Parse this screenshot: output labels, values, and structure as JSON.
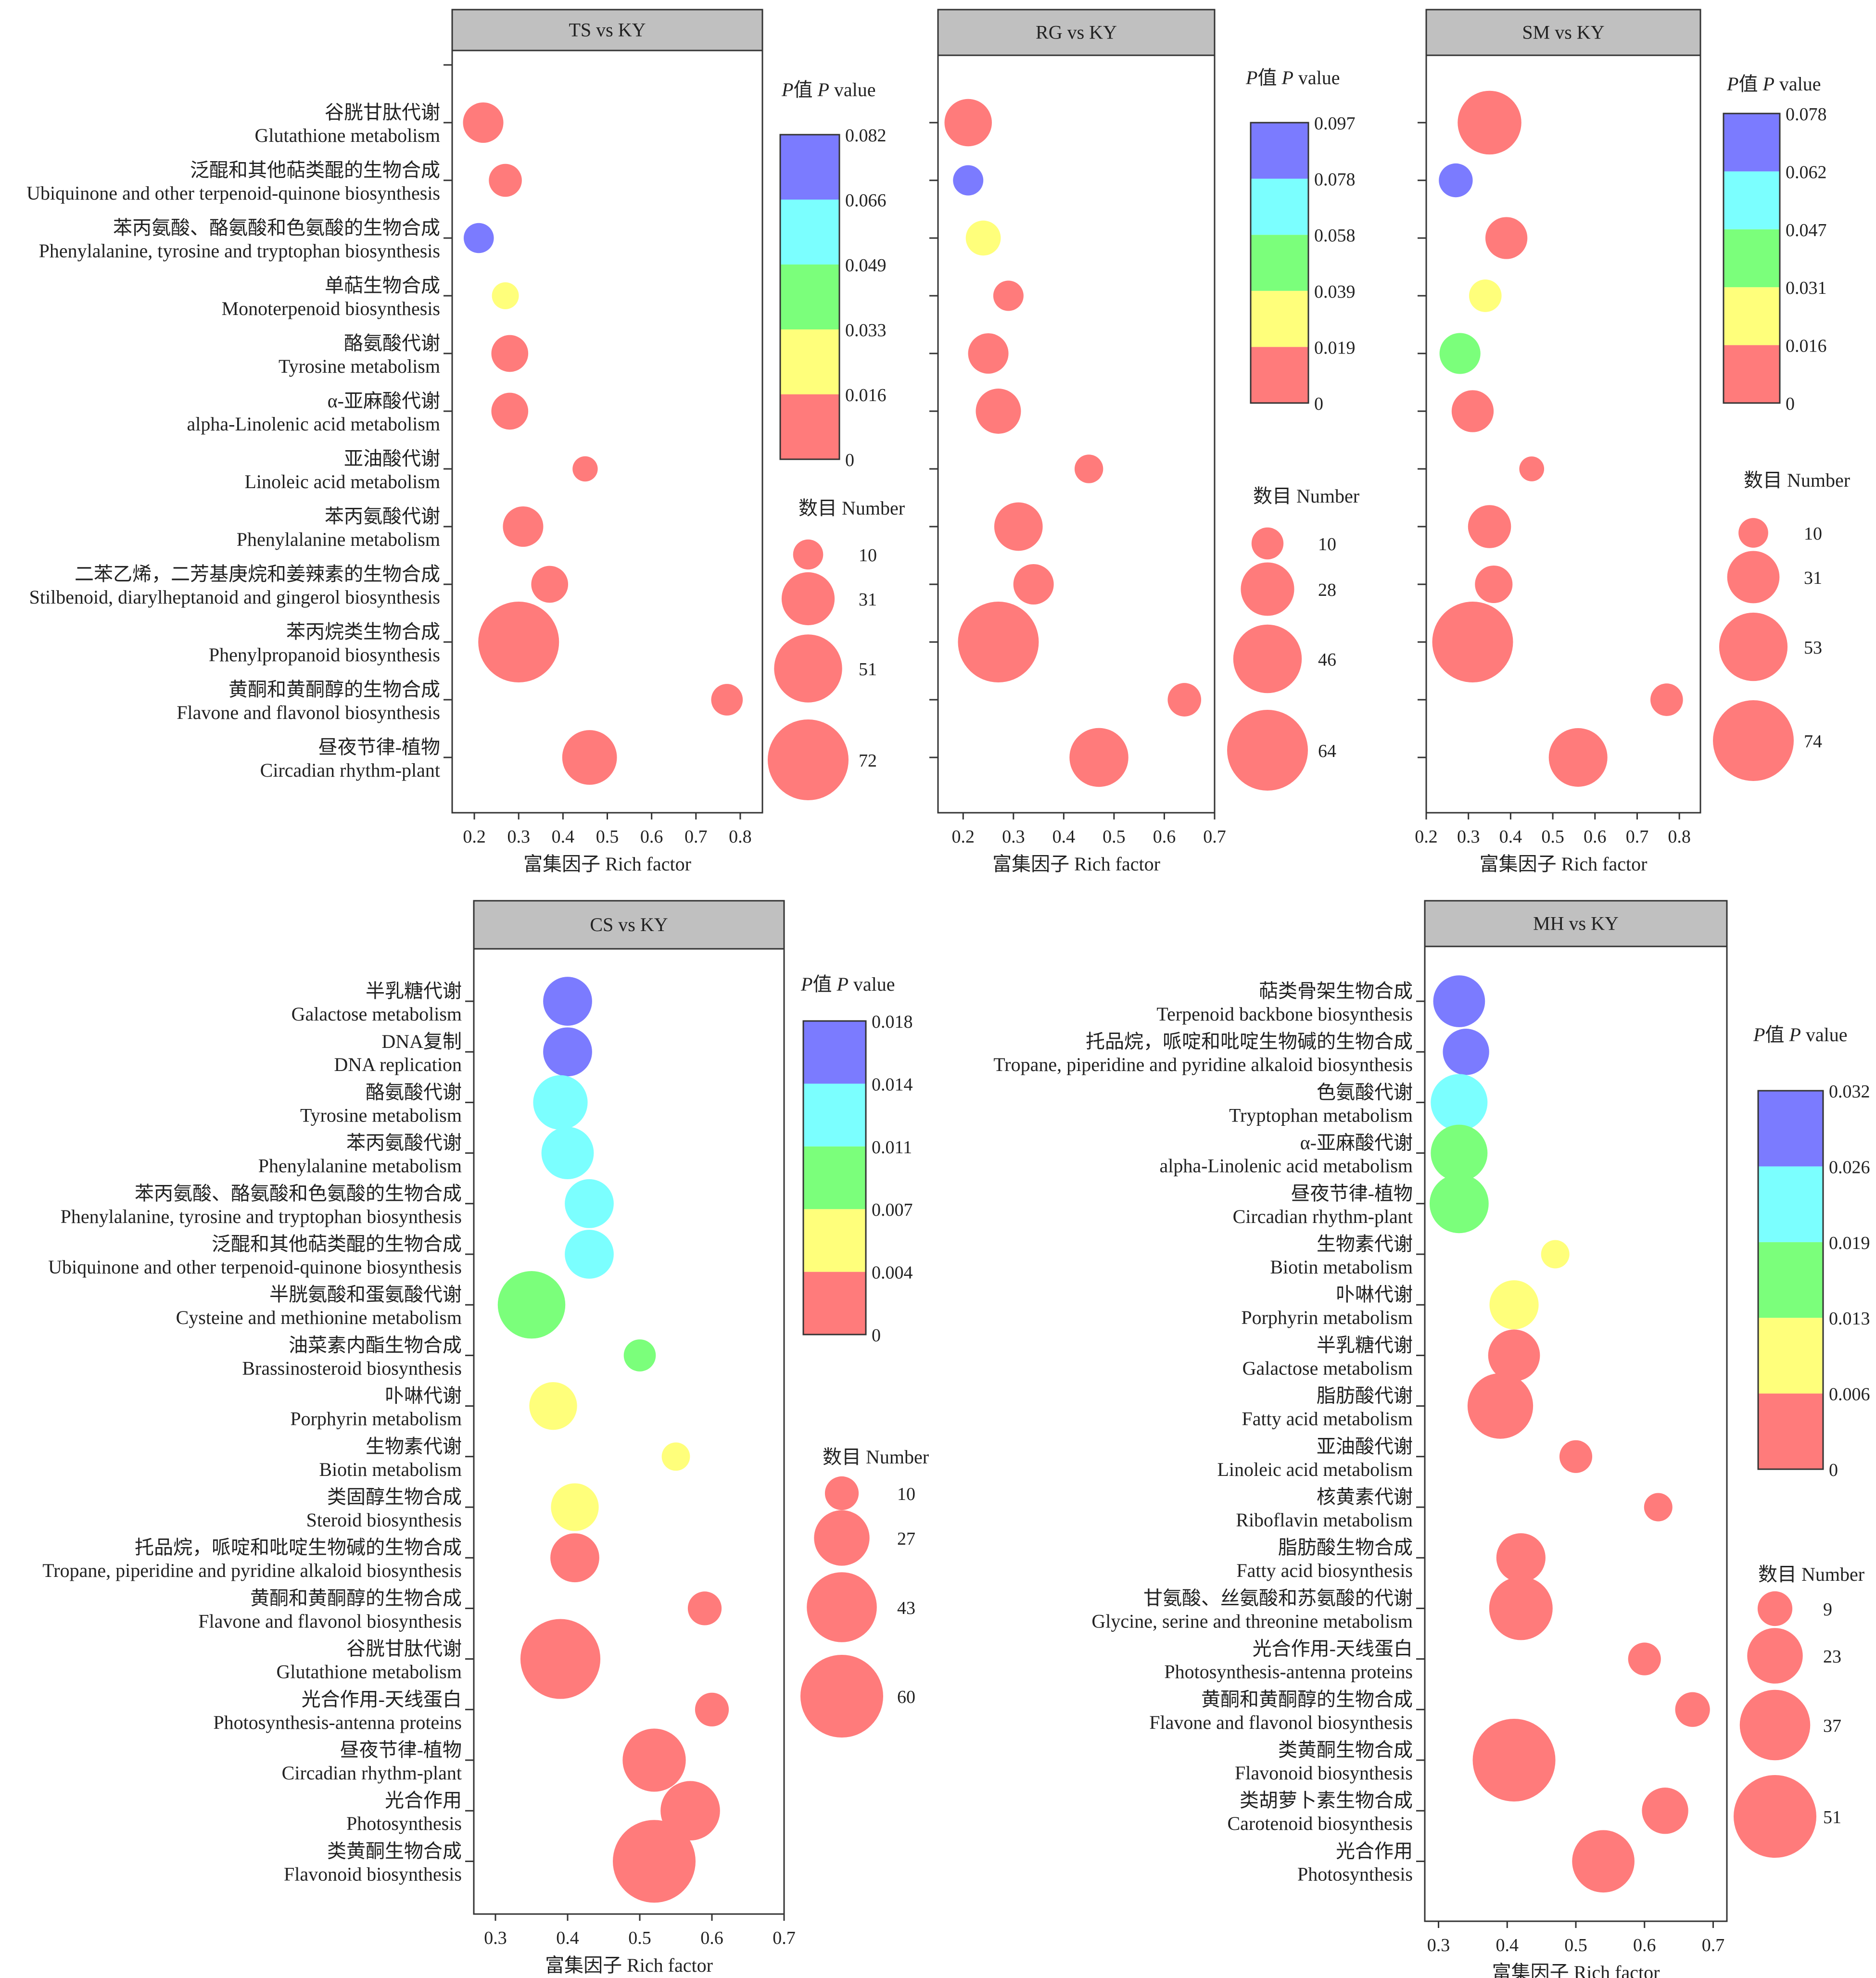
{
  "colors": {
    "scale": [
      "#ff7b7b",
      "#ffff7b",
      "#7bff7b",
      "#7bffff",
      "#7b7bff"
    ],
    "panel_header": "#c0c0c0",
    "axis": "#333333"
  },
  "chart_data": [
    {
      "type": "scatter",
      "title": "TS vs KY",
      "xlabel": "富集因子 Rich factor",
      "xlim": [
        0.15,
        0.85
      ],
      "xticks": [
        "0.2",
        "0.3",
        "0.4",
        "0.5",
        "0.6",
        "0.7",
        "0.8"
      ],
      "pvalue_legend": {
        "title": "P值 P value",
        "ticks": [
          "0",
          "0.016",
          "0.033",
          "0.049",
          "0.066",
          "0.082"
        ]
      },
      "size_legend": {
        "title": "数目 Number",
        "values": [
          10,
          31,
          51,
          72
        ]
      },
      "categories": [
        {
          "cn": "谷胱甘肽代谢",
          "en": "Glutathione metabolism",
          "x": 0.22,
          "n": 18,
          "p": 0.004
        },
        {
          "cn": "泛醌和其他萜类醌的生物合成",
          "en": "Ubiquinone and other terpenoid-quinone biosynthesis",
          "x": 0.27,
          "n": 12,
          "p": 0.006
        },
        {
          "cn": "苯丙氨酸、酪氨酸和色氨酸的生物合成",
          "en": "Phenylalanine, tyrosine and tryptophan biosynthesis",
          "x": 0.21,
          "n": 10,
          "p": 0.08
        },
        {
          "cn": "单萜生物合成",
          "en": "Monoterpenoid biosynthesis",
          "x": 0.27,
          "n": 8,
          "p": 0.025
        },
        {
          "cn": "酪氨酸代谢",
          "en": "Tyrosine metabolism",
          "x": 0.28,
          "n": 15,
          "p": 0.007
        },
        {
          "cn": "α-亚麻酸代谢",
          "en": "alpha-Linolenic acid metabolism",
          "x": 0.28,
          "n": 15,
          "p": 0.007
        },
        {
          "cn": "亚油酸代谢",
          "en": "Linoleic acid metabolism",
          "x": 0.45,
          "n": 7,
          "p": 0.008
        },
        {
          "cn": "苯丙氨酸代谢",
          "en": "Phenylalanine metabolism",
          "x": 0.31,
          "n": 18,
          "p": 0.005
        },
        {
          "cn": "二苯乙烯，二芳基庚烷和姜辣素的生物合成",
          "en": "Stilbenoid, diarylheptanoid and gingerol biosynthesis",
          "x": 0.37,
          "n": 15,
          "p": 0.005
        },
        {
          "cn": "苯丙烷类生物合成",
          "en": "Phenylpropanoid biosynthesis",
          "x": 0.3,
          "n": 72,
          "p": 0.0
        },
        {
          "cn": "黄酮和黄酮醇的生物合成",
          "en": "Flavone and flavonol biosynthesis",
          "x": 0.77,
          "n": 11,
          "p": 0.004
        },
        {
          "cn": "昼夜节律-植物",
          "en": "Circadian rhythm-plant",
          "x": 0.46,
          "n": 33,
          "p": 0.0
        }
      ]
    },
    {
      "type": "scatter",
      "title": "RG vs KY",
      "xlabel": "富集因子 Rich factor",
      "xlim": [
        0.15,
        0.7
      ],
      "xticks": [
        "0.2",
        "0.3",
        "0.4",
        "0.5",
        "0.6",
        "0.7"
      ],
      "pvalue_legend": {
        "title": "P值 P value",
        "ticks": [
          "0",
          "0.019",
          "0.039",
          "0.058",
          "0.078",
          "0.097"
        ]
      },
      "size_legend": {
        "title": "数目 Number",
        "values": [
          10,
          28,
          46,
          64
        ]
      },
      "categories": [
        {
          "cn": "",
          "en": "",
          "x": 0.21,
          "n": 22,
          "p": 0.003
        },
        {
          "cn": "",
          "en": "",
          "x": 0.21,
          "n": 9,
          "p": 0.095
        },
        {
          "cn": "",
          "en": "",
          "x": 0.24,
          "n": 12,
          "p": 0.03
        },
        {
          "cn": "",
          "en": "",
          "x": 0.29,
          "n": 9,
          "p": 0.005
        },
        {
          "cn": "",
          "en": "",
          "x": 0.25,
          "n": 16,
          "p": 0.008
        },
        {
          "cn": "",
          "en": "",
          "x": 0.27,
          "n": 20,
          "p": 0.004
        },
        {
          "cn": "",
          "en": "",
          "x": 0.45,
          "n": 8,
          "p": 0.01
        },
        {
          "cn": "",
          "en": "",
          "x": 0.31,
          "n": 23,
          "p": 0.004
        },
        {
          "cn": "",
          "en": "",
          "x": 0.34,
          "n": 16,
          "p": 0.005
        },
        {
          "cn": "",
          "en": "",
          "x": 0.27,
          "n": 64,
          "p": 0.0
        },
        {
          "cn": "",
          "en": "",
          "x": 0.64,
          "n": 11,
          "p": 0.006
        },
        {
          "cn": "",
          "en": "",
          "x": 0.47,
          "n": 34,
          "p": 0.0
        }
      ]
    },
    {
      "type": "scatter",
      "title": "SM vs KY",
      "xlabel": "富集因子 Rich factor",
      "xlim": [
        0.2,
        0.85
      ],
      "xticks": [
        "0.2",
        "0.3",
        "0.4",
        "0.5",
        "0.6",
        "0.7",
        "0.8"
      ],
      "pvalue_legend": {
        "title": "P值 P value",
        "ticks": [
          "0",
          "0.016",
          "0.031",
          "0.047",
          "0.062",
          "0.078"
        ]
      },
      "size_legend": {
        "title": "数目 Number",
        "values": [
          10,
          31,
          53,
          74
        ]
      },
      "categories": [
        {
          "cn": "",
          "en": "",
          "x": 0.35,
          "n": 46,
          "p": 0.002
        },
        {
          "cn": "",
          "en": "",
          "x": 0.27,
          "n": 13,
          "p": 0.075
        },
        {
          "cn": "",
          "en": "",
          "x": 0.39,
          "n": 20,
          "p": 0.006
        },
        {
          "cn": "",
          "en": "",
          "x": 0.34,
          "n": 12,
          "p": 0.025
        },
        {
          "cn": "",
          "en": "",
          "x": 0.28,
          "n": 19,
          "p": 0.038
        },
        {
          "cn": "",
          "en": "",
          "x": 0.31,
          "n": 20,
          "p": 0.006
        },
        {
          "cn": "",
          "en": "",
          "x": 0.45,
          "n": 7,
          "p": 0.008
        },
        {
          "cn": "",
          "en": "",
          "x": 0.35,
          "n": 21,
          "p": 0.004
        },
        {
          "cn": "",
          "en": "",
          "x": 0.36,
          "n": 16,
          "p": 0.005
        },
        {
          "cn": "",
          "en": "",
          "x": 0.31,
          "n": 74,
          "p": 0.0
        },
        {
          "cn": "",
          "en": "",
          "x": 0.77,
          "n": 12,
          "p": 0.005
        },
        {
          "cn": "",
          "en": "",
          "x": 0.56,
          "n": 39,
          "p": 0.0
        }
      ]
    },
    {
      "type": "scatter",
      "title": "CS vs KY",
      "xlabel": "富集因子 Rich factor",
      "xlim": [
        0.27,
        0.7
      ],
      "xticks": [
        "0.3",
        "0.4",
        "0.5",
        "0.6",
        "0.7"
      ],
      "pvalue_legend": {
        "title": "P值 P value",
        "ticks": [
          "0",
          "0.004",
          "0.007",
          "0.011",
          "0.014",
          "0.018"
        ]
      },
      "size_legend": {
        "title": "数目 Number",
        "values": [
          10,
          27,
          43,
          60
        ]
      },
      "categories": [
        {
          "cn": "半乳糖代谢",
          "en": "Galactose metabolism",
          "x": 0.4,
          "n": 21,
          "p": 0.017
        },
        {
          "cn": "DNA复制",
          "en": "DNA replication",
          "x": 0.4,
          "n": 21,
          "p": 0.017
        },
        {
          "cn": "酪氨酸代谢",
          "en": "Tyrosine metabolism",
          "x": 0.39,
          "n": 26,
          "p": 0.012
        },
        {
          "cn": "苯丙氨酸代谢",
          "en": "Phenylalanine metabolism",
          "x": 0.4,
          "n": 24,
          "p": 0.012
        },
        {
          "cn": "苯丙氨酸、酪氨酸和色氨酸的生物合成",
          "en": "Phenylalanine, tyrosine and tryptophan biosynthesis",
          "x": 0.43,
          "n": 21,
          "p": 0.012
        },
        {
          "cn": "泛醌和其他萜类醌的生物合成",
          "en": "Ubiquinone and other terpenoid-quinone biosynthesis",
          "x": 0.43,
          "n": 21,
          "p": 0.012
        },
        {
          "cn": "半胱氨酸和蛋氨酸代谢",
          "en": "Cysteine and methionine metabolism",
          "x": 0.35,
          "n": 40,
          "p": 0.009
        },
        {
          "cn": "油菜素内酯生物合成",
          "en": "Brassinosteroid biosynthesis",
          "x": 0.5,
          "n": 9,
          "p": 0.008
        },
        {
          "cn": "卟啉代谢",
          "en": "Porphyrin metabolism",
          "x": 0.38,
          "n": 20,
          "p": 0.005
        },
        {
          "cn": "生物素代谢",
          "en": "Biotin metabolism",
          "x": 0.55,
          "n": 7,
          "p": 0.005
        },
        {
          "cn": "类固醇生物合成",
          "en": "Steroid biosynthesis",
          "x": 0.41,
          "n": 20,
          "p": 0.005
        },
        {
          "cn": "托品烷，哌啶和吡啶生物碱的生物合成",
          "en": "Tropane, piperidine and pyridine alkaloid biosynthesis",
          "x": 0.41,
          "n": 21,
          "p": 0.002
        },
        {
          "cn": "黄酮和黄酮醇的生物合成",
          "en": "Flavone and flavonol biosynthesis",
          "x": 0.59,
          "n": 10,
          "p": 0.001
        },
        {
          "cn": "谷胱甘肽代谢",
          "en": "Glutathione metabolism",
          "x": 0.39,
          "n": 56,
          "p": 0.0
        },
        {
          "cn": "光合作用-天线蛋白",
          "en": "Photosynthesis-antenna proteins",
          "x": 0.6,
          "n": 10,
          "p": 0.001
        },
        {
          "cn": "昼夜节律-植物",
          "en": "Circadian rhythm-plant",
          "x": 0.52,
          "n": 35,
          "p": 0.0
        },
        {
          "cn": "光合作用",
          "en": "Photosynthesis",
          "x": 0.57,
          "n": 31,
          "p": 0.0
        },
        {
          "cn": "类黄酮生物合成",
          "en": "Flavonoid biosynthesis",
          "x": 0.52,
          "n": 60,
          "p": 0.0
        }
      ]
    },
    {
      "type": "scatter",
      "title": "MH vs KY",
      "xlabel": "富集因子 Rich factor",
      "xlim": [
        0.28,
        0.72
      ],
      "xticks": [
        "0.3",
        "0.4",
        "0.5",
        "0.6",
        "0.7"
      ],
      "pvalue_legend": {
        "title": "P值 P value",
        "ticks": [
          "0",
          "0.006",
          "0.013",
          "0.019",
          "0.026",
          "0.032"
        ]
      },
      "size_legend": {
        "title": "数目 Number",
        "values": [
          9,
          23,
          37,
          51
        ]
      },
      "categories": [
        {
          "cn": "萜类骨架生物合成",
          "en": "Terpenoid backbone biosynthesis",
          "x": 0.33,
          "n": 20,
          "p": 0.031
        },
        {
          "cn": "托品烷，哌啶和吡啶生物碱的生物合成",
          "en": "Tropane, piperidine and pyridine alkaloid biosynthesis",
          "x": 0.34,
          "n": 16,
          "p": 0.03
        },
        {
          "cn": "色氨酸代谢",
          "en": "Tryptophan metabolism",
          "x": 0.33,
          "n": 24,
          "p": 0.02
        },
        {
          "cn": "α-亚麻酸代谢",
          "en": "alpha-Linolenic acid metabolism",
          "x": 0.33,
          "n": 24,
          "p": 0.016
        },
        {
          "cn": "昼夜节律-植物",
          "en": "Circadian rhythm-plant",
          "x": 0.33,
          "n": 26,
          "p": 0.016
        },
        {
          "cn": "生物素代谢",
          "en": "Biotin metabolism",
          "x": 0.47,
          "n": 6,
          "p": 0.009
        },
        {
          "cn": "卟啉代谢",
          "en": "Porphyrin metabolism",
          "x": 0.41,
          "n": 18,
          "p": 0.009
        },
        {
          "cn": "半乳糖代谢",
          "en": "Galactose metabolism",
          "x": 0.41,
          "n": 20,
          "p": 0.005
        },
        {
          "cn": "脂肪酸代谢",
          "en": "Fatty acid metabolism",
          "x": 0.39,
          "n": 32,
          "p": 0.005
        },
        {
          "cn": "亚油酸代谢",
          "en": "Linoleic acid metabolism",
          "x": 0.5,
          "n": 8,
          "p": 0.004
        },
        {
          "cn": "核黄素代谢",
          "en": "Riboflavin metabolism",
          "x": 0.62,
          "n": 6,
          "p": 0.004
        },
        {
          "cn": "脂肪酸生物合成",
          "en": "Fatty acid biosynthesis",
          "x": 0.42,
          "n": 18,
          "p": 0.004
        },
        {
          "cn": "甘氨酸、丝氨酸和苏氨酸的代谢",
          "en": "Glycine, serine and threonine metabolism",
          "x": 0.42,
          "n": 30,
          "p": 0.003
        },
        {
          "cn": "光合作用-天线蛋白",
          "en": "Photosynthesis-antenna proteins",
          "x": 0.6,
          "n": 8,
          "p": 0.002
        },
        {
          "cn": "黄酮和黄酮醇的生物合成",
          "en": "Flavone and flavonol biosynthesis",
          "x": 0.67,
          "n": 9,
          "p": 0.002
        },
        {
          "cn": "类黄酮生物合成",
          "en": "Flavonoid biosynthesis",
          "x": 0.41,
          "n": 51,
          "p": 0.0
        },
        {
          "cn": "类胡萝卜素生物合成",
          "en": "Carotenoid biosynthesis",
          "x": 0.63,
          "n": 16,
          "p": 0.001
        },
        {
          "cn": "光合作用",
          "en": "Photosynthesis",
          "x": 0.54,
          "n": 29,
          "p": 0.0
        }
      ]
    }
  ]
}
